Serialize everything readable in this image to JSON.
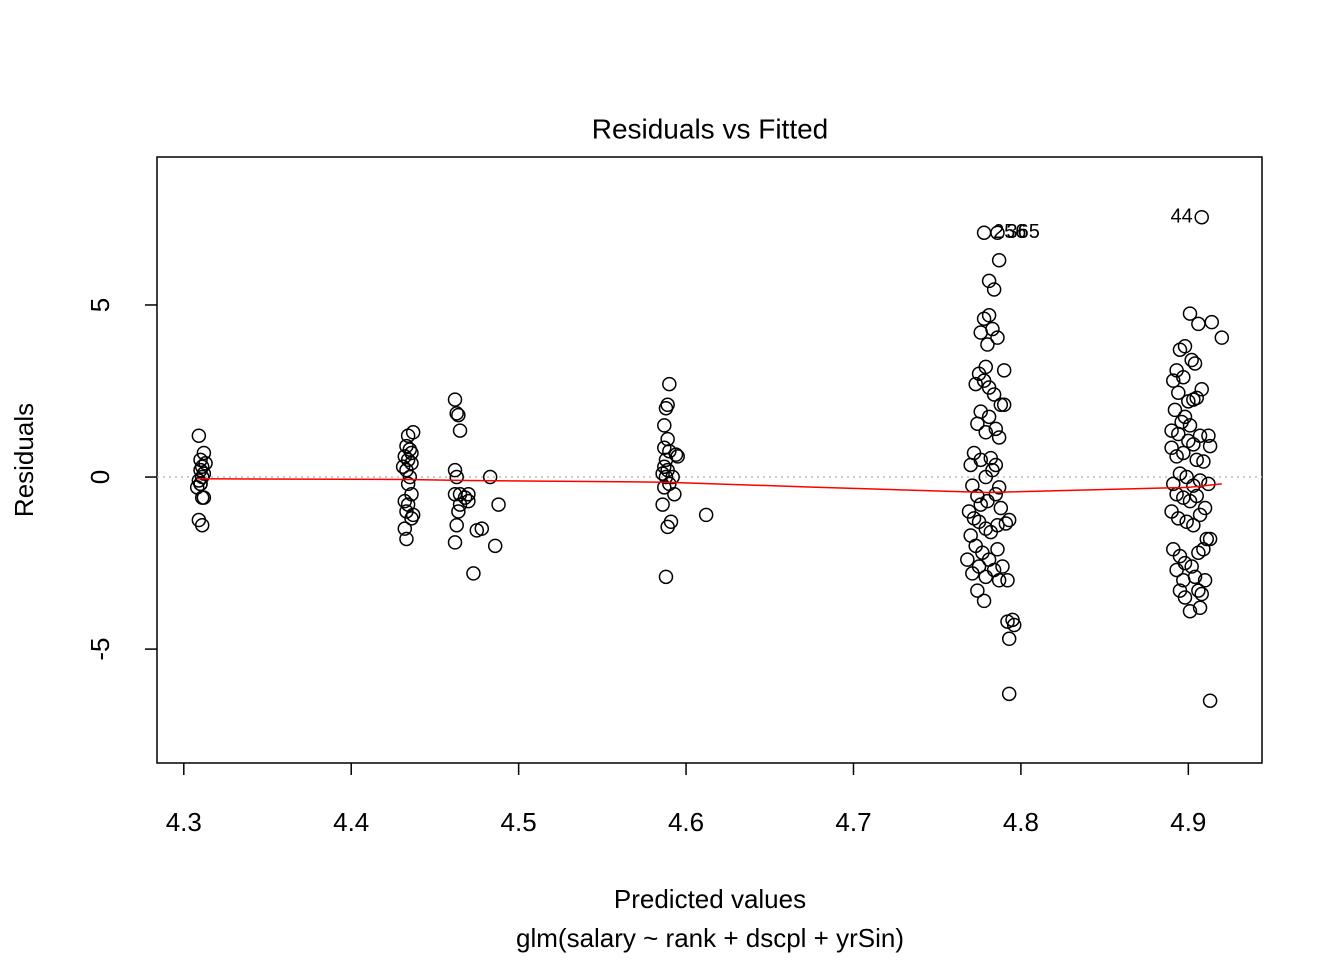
{
  "chart_data": {
    "type": "scatter",
    "title": "Residuals vs Fitted",
    "xlabel": "Predicted values",
    "subtitle": "glm(salary ~ rank + dscpl + yrSin)",
    "ylabel": "Residuals",
    "xlim": [
      4.284,
      4.944
    ],
    "ylim": [
      -8.31,
      9.3
    ],
    "xticks": [
      4.3,
      4.4,
      4.5,
      4.6,
      4.7,
      4.8,
      4.9
    ],
    "yticks": [
      -5,
      0,
      5
    ],
    "point_color": "#000000",
    "hline": 0,
    "hline_color": "#bbbbbb",
    "x": [
      4.309,
      4.311,
      4.31,
      4.313,
      4.312,
      4.31,
      4.311,
      4.309,
      4.31,
      4.308,
      4.311,
      4.312,
      4.309,
      4.311,
      4.312,
      4.31,
      4.437,
      4.434,
      4.433,
      4.435,
      4.436,
      4.432,
      4.434,
      4.436,
      4.431,
      4.433,
      4.435,
      4.434,
      4.436,
      4.432,
      4.434,
      4.433,
      4.437,
      4.436,
      4.432,
      4.433,
      4.462,
      4.463,
      4.464,
      4.465,
      4.462,
      4.463,
      4.462,
      4.465,
      4.468,
      4.47,
      4.47,
      4.465,
      4.464,
      4.463,
      4.462,
      4.475,
      4.478,
      4.473,
      4.483,
      4.488,
      4.486,
      4.59,
      4.589,
      4.588,
      4.587,
      4.589,
      4.587,
      4.59,
      4.588,
      4.587,
      4.589,
      4.586,
      4.588,
      4.59,
      4.587,
      4.586,
      4.589,
      4.588,
      4.594,
      4.595,
      4.592,
      4.593,
      4.591,
      4.612,
      4.778,
      4.786,
      4.787,
      4.781,
      4.784,
      4.778,
      4.781,
      4.776,
      4.783,
      4.786,
      4.78,
      4.775,
      4.79,
      4.779,
      4.773,
      4.778,
      4.781,
      4.784,
      4.788,
      4.79,
      4.776,
      4.774,
      4.781,
      4.785,
      4.779,
      4.787,
      4.772,
      4.776,
      4.782,
      4.785,
      4.77,
      4.779,
      4.783,
      4.787,
      4.771,
      4.774,
      4.776,
      4.78,
      4.785,
      4.788,
      4.769,
      4.772,
      4.775,
      4.779,
      4.782,
      4.786,
      4.791,
      4.793,
      4.77,
      4.773,
      4.777,
      4.781,
      4.786,
      4.789,
      4.768,
      4.771,
      4.775,
      4.779,
      4.784,
      4.787,
      4.792,
      4.774,
      4.778,
      4.792,
      4.796,
      4.795,
      4.793,
      4.793,
      4.908,
      4.901,
      4.906,
      4.914,
      4.92,
      4.898,
      4.895,
      4.902,
      4.904,
      4.893,
      4.897,
      4.891,
      4.908,
      4.894,
      4.9,
      4.905,
      4.903,
      4.892,
      4.898,
      4.896,
      4.901,
      4.89,
      4.894,
      4.9,
      4.903,
      4.907,
      4.912,
      4.913,
      4.89,
      4.893,
      4.897,
      4.905,
      4.909,
      4.895,
      4.899,
      4.891,
      4.903,
      4.907,
      4.912,
      4.893,
      4.897,
      4.901,
      4.905,
      4.91,
      4.89,
      4.894,
      4.899,
      4.903,
      4.907,
      4.911,
      4.913,
      4.891,
      4.895,
      4.898,
      4.902,
      4.906,
      4.909,
      4.893,
      4.897,
      4.904,
      4.91,
      4.895,
      4.898,
      4.906,
      4.908,
      4.901,
      4.907,
      4.913
    ],
    "y": [
      1.2,
      0.3,
      0.2,
      0.4,
      0.7,
      0.5,
      0,
      -0.1,
      -0.2,
      -0.3,
      -0.6,
      -0.6,
      -1.25,
      -1.4,
      0.1,
      -0.2,
      1.3,
      1.2,
      0.9,
      0.8,
      0.7,
      0.6,
      0.5,
      0.4,
      0.3,
      0.2,
      0,
      -0.2,
      -0.5,
      -0.7,
      -0.8,
      -1.0,
      -1.1,
      -1.2,
      -1.5,
      -1.8,
      2.25,
      1.85,
      1.8,
      1.35,
      0.2,
      0,
      -0.5,
      -0.5,
      -0.6,
      -0.5,
      -0.7,
      -0.8,
      -1.0,
      -1.4,
      -1.9,
      -1.55,
      -1.5,
      -2.8,
      0,
      -0.8,
      -2.0,
      2.7,
      2.1,
      2.0,
      1.5,
      1.1,
      0.85,
      0.75,
      0.5,
      0.3,
      0.2,
      0.1,
      0,
      -0.2,
      -0.3,
      -0.8,
      -1.45,
      -2.9,
      0.65,
      0.6,
      0,
      -0.5,
      -1.3,
      -1.1,
      7.1,
      7.1,
      6.3,
      5.7,
      5.45,
      4.6,
      4.7,
      4.2,
      4.3,
      4.05,
      3.85,
      3.0,
      3.1,
      3.2,
      2.7,
      2.8,
      2.6,
      2.4,
      2.1,
      2.1,
      1.9,
      1.55,
      1.75,
      1.4,
      1.3,
      1.15,
      0.7,
      0.5,
      0.55,
      0.35,
      0.35,
      0,
      0.2,
      -0.3,
      -0.25,
      -0.55,
      -0.8,
      -0.7,
      -0.5,
      -0.9,
      -1.0,
      -1.2,
      -1.3,
      -1.5,
      -1.6,
      -1.4,
      -1.35,
      -1.25,
      -1.7,
      -2.0,
      -2.2,
      -2.4,
      -2.1,
      -2.6,
      -2.4,
      -2.8,
      -2.6,
      -2.9,
      -2.7,
      -3.0,
      -3.0,
      -3.3,
      -3.6,
      -4.2,
      -4.3,
      -4.15,
      -4.7,
      -6.3,
      7.55,
      4.75,
      4.45,
      4.5,
      4.05,
      3.8,
      3.7,
      3.4,
      3.3,
      3.1,
      2.9,
      2.8,
      2.55,
      2.45,
      2.2,
      2.3,
      2.25,
      1.95,
      1.75,
      1.6,
      1.5,
      1.35,
      1.25,
      1.05,
      0.95,
      1.2,
      1.2,
      0.9,
      0.85,
      0.6,
      0.7,
      0.5,
      0.45,
      0.1,
      0,
      -0.2,
      -0.25,
      -0.1,
      -0.2,
      -0.5,
      -0.6,
      -0.7,
      -0.55,
      -0.9,
      -1.0,
      -1.2,
      -1.3,
      -1.4,
      -1.1,
      -1.8,
      -1.8,
      -2.1,
      -2.3,
      -2.5,
      -2.6,
      -2.2,
      -2.1,
      -2.7,
      -3.0,
      -2.9,
      -3.0,
      -3.3,
      -3.5,
      -3.3,
      -3.4,
      -3.9,
      -3.8,
      -6.5
    ],
    "point_labels": [
      {
        "index": 80,
        "label": "256",
        "side": "right"
      },
      {
        "index": 81,
        "label": "365",
        "side": "right"
      },
      {
        "index": 148,
        "label": "44",
        "side": "left"
      }
    ],
    "smooth": {
      "color": "#ff0000",
      "x": [
        4.308,
        4.433,
        4.47,
        4.588,
        4.68,
        4.78,
        4.9,
        4.92
      ],
      "y": [
        -0.05,
        -0.07,
        -0.1,
        -0.15,
        -0.3,
        -0.45,
        -0.3,
        -0.2
      ]
    }
  }
}
